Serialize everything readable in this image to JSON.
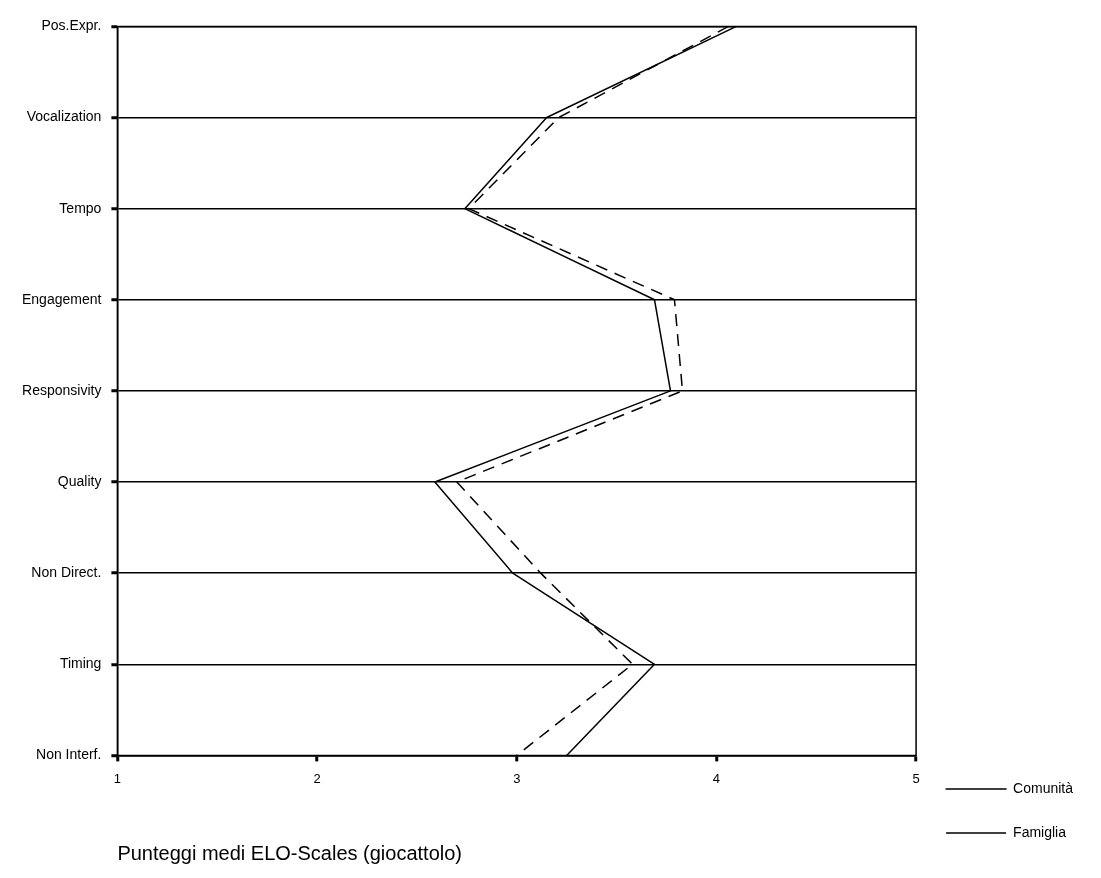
{
  "chart_data": {
    "type": "line",
    "xlabel": "Punteggi medi ELO-Scales (giocattolo)",
    "categories": [
      "Pos.Expr.",
      "Vocalization",
      "Tempo",
      "Engagement",
      "Responsivity",
      "Quality",
      "Non Direct.",
      "Timing",
      "Non Interf."
    ],
    "series": [
      {
        "name": "Comunità",
        "color": "#000000",
        "line_style": "solid",
        "values": [
          4.1,
          3.15,
          2.74,
          3.69,
          3.77,
          2.59,
          2.98,
          3.69,
          3.25
        ]
      },
      {
        "name": "Famiglia",
        "color": "#000000",
        "line_style": "dashed",
        "values": [
          4.06,
          3.21,
          2.76,
          3.79,
          3.83,
          2.7,
          3.12,
          3.58,
          3.0
        ]
      }
    ],
    "orientation": "horizontal",
    "xlim": [
      1,
      5
    ],
    "xticks": [
      1,
      2,
      3,
      4,
      5
    ],
    "grid": "y",
    "legend": "right",
    "marker": "none"
  }
}
